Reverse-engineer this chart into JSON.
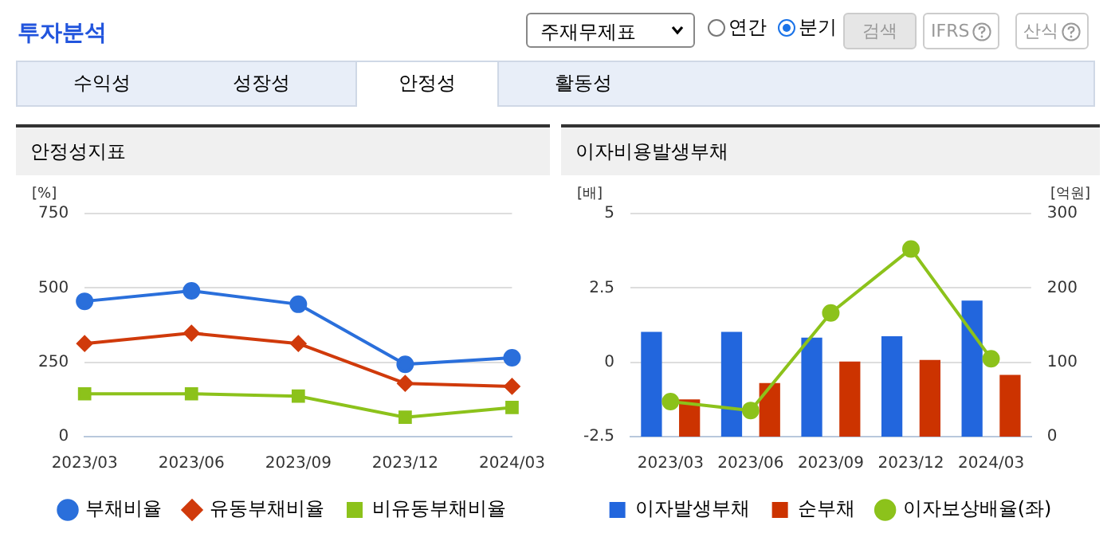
{
  "chart_data": [
    {
      "type": "other",
      "title": "투자분석",
      "annotations": [
        "주재무제표",
        "연간",
        "분기",
        "검색",
        "IFRS",
        "산식",
        "수익성",
        "성장성",
        "안정성",
        "활동성"
      ]
    },
    {
      "type": "line",
      "title": "안정성지표",
      "ylabel": "[%]",
      "categories": [
        "2023/03",
        "2023/06",
        "2023/09",
        "2023/12",
        "2024/03"
      ],
      "series": [
        {
          "name": "부채비율",
          "color": "#2a6fdb",
          "marker": "circle",
          "values": [
            455,
            490,
            445,
            243,
            265
          ]
        },
        {
          "name": "유동부채비율",
          "color": "#d03a0b",
          "marker": "diamond",
          "values": [
            313,
            348,
            313,
            179,
            169
          ]
        },
        {
          "name": "비유동부채비율",
          "color": "#8cc21b",
          "marker": "square",
          "values": [
            144,
            144,
            136,
            65,
            98
          ]
        }
      ],
      "ylim": [
        0,
        750
      ],
      "yticks": [
        0,
        250,
        500,
        750
      ],
      "grid": "y",
      "legend": "bottom"
    },
    {
      "type": "bar",
      "title": "이자비용발생부채",
      "ylabel": "[배]",
      "y2label": "[억원]",
      "categories": [
        "2023/03",
        "2023/06",
        "2023/09",
        "2023/12",
        "2024/03"
      ],
      "series": [
        {
          "name": "이자발생부채",
          "color": "#2266dd",
          "axis": "y2",
          "values": [
            141,
            141,
            133,
            135,
            183
          ]
        },
        {
          "name": "순부채",
          "color": "#cc3300",
          "axis": "y2",
          "values": [
            50,
            72,
            101,
            103,
            83
          ]
        },
        {
          "name": "이자보상배율(좌)",
          "type": "line",
          "color": "#8cc21b",
          "marker": "circle",
          "values": [
            -1.32,
            -1.62,
            1.66,
            3.81,
            0.12
          ]
        }
      ],
      "ylim": [
        -2.5,
        5
      ],
      "yticks": [
        -2.5,
        0,
        2.5,
        5
      ],
      "y2lim": [
        0,
        300
      ],
      "y2ticks": [
        0,
        100,
        200,
        300
      ],
      "grid": "y",
      "legend": "bottom"
    }
  ]
}
